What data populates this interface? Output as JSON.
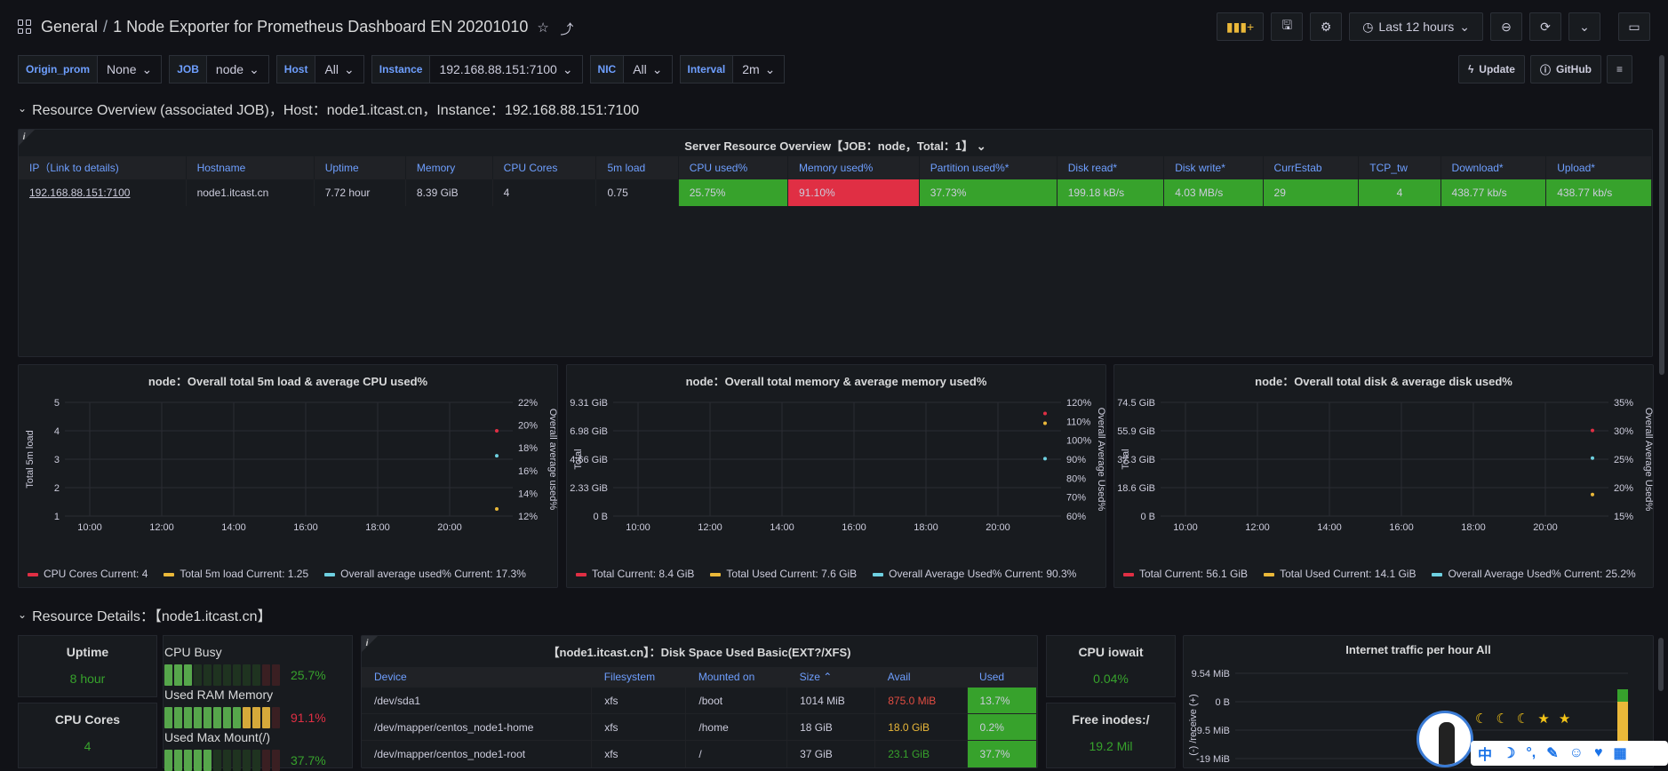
{
  "header": {
    "folder": "General",
    "title": "1 Node Exporter for Prometheus Dashboard EN 20201010",
    "time_range": "Last 12 hours"
  },
  "variables": [
    {
      "label": "Origin_prom",
      "value": "None"
    },
    {
      "label": "JOB",
      "value": "node"
    },
    {
      "label": "Host",
      "value": "All"
    },
    {
      "label": "Instance",
      "value": "192.168.88.151:7100"
    },
    {
      "label": "NIC",
      "value": "All"
    },
    {
      "label": "Interval",
      "value": "2m"
    }
  ],
  "links": {
    "update": "Update",
    "github": "GitHub"
  },
  "row1": {
    "title": "Resource Overview (associated JOB)，Host：node1.itcast.cn，Instance：192.168.88.151:7100"
  },
  "overview": {
    "title": "Server Resource Overview【JOB：node，Total：1】",
    "headers": [
      "IP（Link to details)",
      "Hostname",
      "Uptime",
      "Memory",
      "CPU Cores",
      "5m load",
      "CPU used%",
      "Memory used%",
      "Partition used%*",
      "Disk read*",
      "Disk write*",
      "CurrEstab",
      "TCP_tw",
      "Download*",
      "Upload*"
    ],
    "row": [
      "192.168.88.151:7100",
      "node1.itcast.cn",
      "7.72 hour",
      "8.39 GiB",
      "4",
      "0.75",
      "25.75%",
      "91.10%",
      "37.73%",
      "199.18 kB/s",
      "4.03 MB/s",
      "29",
      "4",
      "438.77 kb/s",
      "438.77 kb/s"
    ]
  },
  "charts": {
    "cpu": {
      "title": "node：Overall total 5m load & average CPU used%",
      "ylabel": "Total 5m load",
      "y2label": "Overall average used%",
      "yticks": [
        "5",
        "4",
        "3",
        "2",
        "1"
      ],
      "y2ticks": [
        "22%",
        "20%",
        "18%",
        "16%",
        "14%",
        "12%"
      ],
      "legend": [
        "CPU Cores  Current: 4",
        "Total 5m load  Current: 1.25",
        "Overall average used%  Current: 17.3%"
      ]
    },
    "mem": {
      "title": "node：Overall total memory & average memory used%",
      "ylabel": "Total",
      "y2label": "Overall Average Used%",
      "yticks": [
        "9.31 GiB",
        "6.98 GiB",
        "4.66 GiB",
        "2.33 GiB",
        "0 B"
      ],
      "y2ticks": [
        "120%",
        "110%",
        "100%",
        "90%",
        "80%",
        "70%",
        "60%"
      ],
      "legend": [
        "Total  Current: 8.4 GiB",
        "Total Used  Current: 7.6 GiB",
        "Overall Average Used%  Current: 90.3%"
      ]
    },
    "disk": {
      "title": "node：Overall total disk & average disk used%",
      "ylabel": "Total",
      "y2label": "Overall Average Used%",
      "yticks": [
        "74.5 GiB",
        "55.9 GiB",
        "37.3 GiB",
        "18.6 GiB",
        "0 B"
      ],
      "y2ticks": [
        "35%",
        "30%",
        "25%",
        "20%",
        "15%"
      ],
      "legend": [
        "Total  Current: 56.1 GiB",
        "Total Used  Current: 14.1 GiB",
        "Overall Average Used%  Current: 25.2%"
      ]
    },
    "xticks": [
      "10:00",
      "12:00",
      "14:00",
      "16:00",
      "18:00",
      "20:00"
    ]
  },
  "chart_data": [
    {
      "type": "line",
      "title": "node：Overall total 5m load & average CPU used%",
      "ylabel": "Total 5m load",
      "ylim": [
        1,
        5
      ],
      "y2lim": [
        12,
        22
      ],
      "series": [
        {
          "name": "CPU Cores",
          "current": 4
        },
        {
          "name": "Total 5m load",
          "current": 1.25
        },
        {
          "name": "Overall average used%",
          "current": 17.3
        }
      ]
    },
    {
      "type": "line",
      "title": "node：Overall total memory & average memory used%",
      "ylabel": "Total",
      "y2lim": [
        60,
        120
      ],
      "series": [
        {
          "name": "Total",
          "current": 8.4
        },
        {
          "name": "Total Used",
          "current": 7.6
        },
        {
          "name": "Overall Average Used%",
          "current": 90.3
        }
      ]
    },
    {
      "type": "line",
      "title": "node：Overall total disk & average disk used%",
      "ylabel": "Total",
      "y2lim": [
        15,
        35
      ],
      "series": [
        {
          "name": "Total",
          "current": 56.1
        },
        {
          "name": "Total Used",
          "current": 14.1
        },
        {
          "name": "Overall Average Used%",
          "current": 25.2
        }
      ]
    }
  ],
  "row2": {
    "title": "Resource Details：【node1.itcast.cn】"
  },
  "stats": {
    "uptime_label": "Uptime",
    "uptime": "8 hour",
    "cores_label": "CPU Cores",
    "cores": "4",
    "iowait_label": "CPU iowait",
    "iowait": "0.04%",
    "inodes_label": "Free inodes:/",
    "inodes": "19.2 Mil"
  },
  "bargauges": [
    {
      "label": "CPU Busy",
      "value": "25.7%",
      "fraction": 0.257
    },
    {
      "label": "Used RAM Memory",
      "value": "91.1%",
      "fraction": 0.911
    },
    {
      "label": "Used Max Mount(/)",
      "value": "37.7%",
      "fraction": 0.377
    }
  ],
  "diskspace": {
    "title": "【node1.itcast.cn】：Disk Space Used Basic(EXT?/XFS)",
    "headers": [
      "Device",
      "Filesystem",
      "Mounted on",
      "Size",
      "Avail",
      "Used"
    ],
    "rows": [
      [
        "/dev/sda1",
        "xfs",
        "/boot",
        "1014 MiB",
        "875.0 MiB",
        "13.7%"
      ],
      [
        "/dev/mapper/centos_node1-home",
        "xfs",
        "/home",
        "18 GiB",
        "18.0 GiB",
        "0.2%"
      ],
      [
        "/dev/mapper/centos_node1-root",
        "xfs",
        "/",
        "37 GiB",
        "23.1 GiB",
        "37.7%"
      ]
    ]
  },
  "traffic": {
    "title": "Internet traffic per hour All",
    "yticks": [
      "9.54 MiB",
      "0 B",
      "-9.5 MiB",
      "-19 MiB"
    ],
    "ylabel": "(-) /receive (+)"
  },
  "colors": {
    "green": "#37a22c",
    "red": "#e02f44",
    "yellow": "#eab839",
    "cyan": "#6ed0e0",
    "blue": "#6e9fff"
  }
}
